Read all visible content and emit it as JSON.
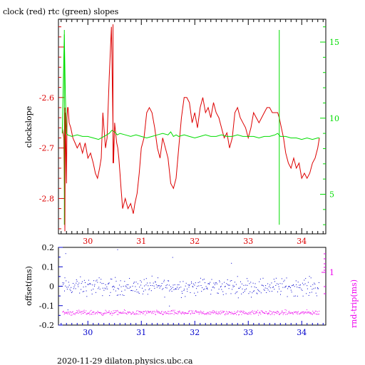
{
  "chart_data": [
    {
      "type": "line",
      "title": "clock (red) rtc (green) slopes",
      "xlabel": "",
      "ylabel": "clockslope",
      "y2label": "",
      "xlim": [
        29.45,
        34.45
      ],
      "ylim": [
        -2.87,
        -2.445
      ],
      "y2lim": [
        2.4,
        16.5
      ],
      "x_ticks": [
        "30",
        "31",
        "32",
        "33",
        "34"
      ],
      "y_ticks": [
        "-2.6",
        "-2.7",
        "-2.8"
      ],
      "y2_ticks": [
        "15",
        "10",
        "5"
      ],
      "series": [
        {
          "color": "#dd0000",
          "axis": "left",
          "x": [
            29.52,
            29.55,
            29.57,
            29.58,
            29.59,
            29.6,
            29.61,
            29.62,
            29.63,
            29.65,
            29.68,
            29.72,
            29.76,
            29.8,
            29.85,
            29.9,
            29.95,
            30.0,
            30.05,
            30.1,
            30.14,
            30.18,
            30.22,
            30.25,
            30.28,
            30.3,
            30.33,
            30.36,
            30.4,
            30.44,
            30.48,
            30.5,
            30.52,
            30.54,
            30.56,
            30.58,
            30.6,
            30.62,
            30.65,
            30.7,
            30.75,
            30.8,
            30.85,
            30.88,
            30.92,
            30.96,
            31.0,
            31.05,
            31.1,
            31.15,
            31.2,
            31.25,
            31.3,
            31.35,
            31.4,
            31.45,
            31.5,
            31.55,
            31.6,
            31.65,
            31.7,
            31.75,
            31.8,
            31.85,
            31.9,
            31.95,
            32.0,
            32.05,
            32.1,
            32.15,
            32.2,
            32.25,
            32.3,
            32.35,
            32.4,
            32.45,
            32.5,
            32.55,
            32.6,
            32.65,
            32.7,
            32.75,
            32.8,
            32.85,
            32.9,
            32.95,
            33.0,
            33.05,
            33.1,
            33.15,
            33.2,
            33.25,
            33.3,
            33.35,
            33.4,
            33.45,
            33.5,
            33.55,
            33.58,
            33.62,
            33.66,
            33.7,
            33.75,
            33.8,
            33.85,
            33.9,
            33.95,
            34.0,
            34.05,
            34.1,
            34.15,
            34.2,
            34.25,
            34.3,
            34.33
          ],
          "values": [
            -2.66,
            -2.68,
            -2.86,
            -2.63,
            -2.7,
            -2.77,
            -2.64,
            -2.62,
            -2.62,
            -2.65,
            -2.66,
            -2.68,
            -2.69,
            -2.7,
            -2.69,
            -2.71,
            -2.69,
            -2.72,
            -2.71,
            -2.73,
            -2.75,
            -2.76,
            -2.74,
            -2.72,
            -2.63,
            -2.66,
            -2.7,
            -2.68,
            -2.56,
            -2.46,
            -2.73,
            -2.65,
            -2.67,
            -2.69,
            -2.7,
            -2.72,
            -2.75,
            -2.78,
            -2.82,
            -2.8,
            -2.82,
            -2.81,
            -2.83,
            -2.81,
            -2.79,
            -2.75,
            -2.7,
            -2.68,
            -2.63,
            -2.62,
            -2.63,
            -2.66,
            -2.7,
            -2.72,
            -2.68,
            -2.7,
            -2.72,
            -2.77,
            -2.78,
            -2.76,
            -2.7,
            -2.64,
            -2.6,
            -2.6,
            -2.61,
            -2.65,
            -2.63,
            -2.66,
            -2.62,
            -2.6,
            -2.63,
            -2.62,
            -2.64,
            -2.61,
            -2.63,
            -2.64,
            -2.66,
            -2.68,
            -2.67,
            -2.7,
            -2.68,
            -2.63,
            -2.62,
            -2.64,
            -2.65,
            -2.66,
            -2.68,
            -2.66,
            -2.63,
            -2.64,
            -2.65,
            -2.64,
            -2.63,
            -2.62,
            -2.62,
            -2.63,
            -2.63,
            -2.63,
            -2.64,
            -2.66,
            -2.68,
            -2.71,
            -2.73,
            -2.74,
            -2.72,
            -2.74,
            -2.73,
            -2.76,
            -2.75,
            -2.76,
            -2.75,
            -2.73,
            -2.72,
            -2.7,
            -2.68
          ]
        },
        {
          "color": "#00dd00",
          "axis": "right",
          "x": [
            29.52,
            29.56,
            29.58,
            29.6,
            29.62,
            29.7,
            29.8,
            29.9,
            30.0,
            30.1,
            30.2,
            30.3,
            30.4,
            30.45,
            30.5,
            30.55,
            30.6,
            30.7,
            30.8,
            30.9,
            31.0,
            31.1,
            31.2,
            31.3,
            31.4,
            31.5,
            31.55,
            31.6,
            31.65,
            31.7,
            31.8,
            31.9,
            32.0,
            32.1,
            32.2,
            32.3,
            32.4,
            32.5,
            32.6,
            32.7,
            32.8,
            32.9,
            33.0,
            33.1,
            33.2,
            33.3,
            33.4,
            33.5,
            33.55,
            33.6,
            33.7,
            33.8,
            33.9,
            34.0,
            34.1,
            34.2,
            34.3,
            34.33
          ],
          "values": [
            9.0,
            15.5,
            11.5,
            9.0,
            8.9,
            8.8,
            8.9,
            8.8,
            8.8,
            8.7,
            8.6,
            8.8,
            9.0,
            9.2,
            9.1,
            8.9,
            9.0,
            8.9,
            8.8,
            8.9,
            8.8,
            8.7,
            8.8,
            8.9,
            9.0,
            8.9,
            9.1,
            8.8,
            8.9,
            8.8,
            8.9,
            8.8,
            8.7,
            8.8,
            8.9,
            8.8,
            8.8,
            8.9,
            8.8,
            8.8,
            8.9,
            8.8,
            8.8,
            8.8,
            8.7,
            8.8,
            8.8,
            8.9,
            9.0,
            8.8,
            8.8,
            8.7,
            8.7,
            8.6,
            8.7,
            8.6,
            8.7,
            8.7
          ]
        }
      ],
      "spikes": [
        {
          "color": "#00dd00",
          "x": 29.56,
          "from": 3.0,
          "to": 15.8
        },
        {
          "color": "#00dd00",
          "x": 33.58,
          "from": 3.0,
          "to": 15.8
        },
        {
          "color": "#dd0000",
          "x": 30.47,
          "from": -2.73,
          "to": -2.455
        },
        {
          "color": "#dd0000",
          "x": 29.57,
          "from": -2.865,
          "to": -2.62
        }
      ]
    },
    {
      "type": "scatter",
      "xlabel": "",
      "ylabel": "offset(ms)",
      "y2label": "rnd-trip(ms)",
      "xlim": [
        29.45,
        34.45
      ],
      "ylim": [
        -0.2,
        0.2
      ],
      "y2_log": true,
      "x_ticks": [
        "30",
        "31",
        "32",
        "33",
        "34"
      ],
      "y_ticks": [
        "0.2",
        "0.1",
        "0",
        "-0.1",
        "-0.2"
      ],
      "y2_ticks": [
        "1"
      ],
      "series": [
        {
          "color": "#0000cc",
          "kind": "offset",
          "center": 0.0,
          "spread": 0.045,
          "outliers": [
            [
              29.58,
              0.17
            ],
            [
              30.55,
              0.19
            ],
            [
              31.58,
              0.15
            ],
            [
              29.62,
              -0.12
            ],
            [
              31.52,
              -0.1
            ],
            [
              32.68,
              0.12
            ]
          ]
        },
        {
          "color": "#ee00ee",
          "kind": "rnd-trip",
          "center": -0.135,
          "spread": 0.012
        }
      ]
    }
  ],
  "footer": "2020-11-29 dilaton.physics.ubc.ca"
}
